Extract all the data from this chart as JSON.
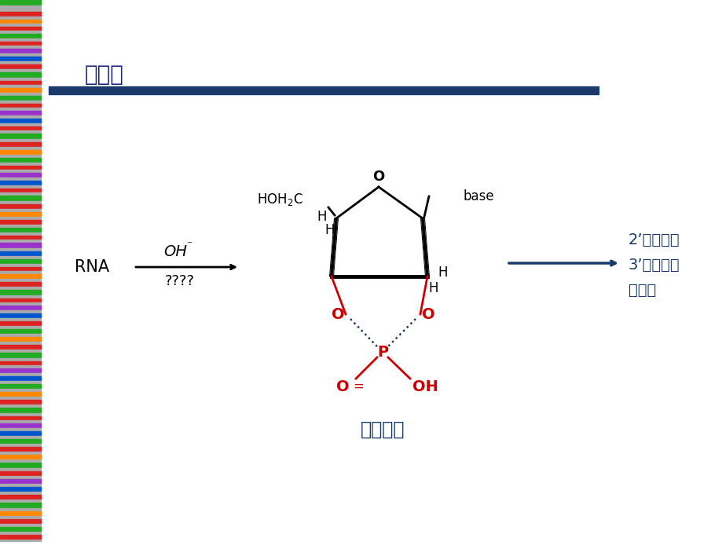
{
  "title": "碱水解",
  "title_color": "#1a237e",
  "title_underline_color": "#1a3a6b",
  "bg_color": "#ffffff",
  "rna_label": "RNA",
  "oh_charge": "⁻",
  "qmarks": "????",
  "arrow1_color": "#000000",
  "arrow2_color": "#1a3a6b",
  "product_lines": [
    "2’－核苷酸",
    "3’－核苷酸",
    "混合物"
  ],
  "product_color": "#1a3a6b",
  "ring_label": "环磷酸酯",
  "ring_label_color": "#1a3a6b",
  "black": "#000000",
  "red": "#cc0000",
  "dark_navy": "#1a3a6b",
  "dotted_color": "#1a3a6b",
  "bar_strips": [
    [
      0,
      6,
      "#22aa22"
    ],
    [
      7,
      3,
      "#aaaaaa"
    ],
    [
      11,
      3,
      "#aaaaaa"
    ],
    [
      15,
      5,
      "#dd2222"
    ],
    [
      21,
      3,
      "#aaaaaa"
    ],
    [
      25,
      4,
      "#ff8800"
    ],
    [
      30,
      3,
      "#aaaaaa"
    ],
    [
      34,
      4,
      "#dd2222"
    ],
    [
      39,
      3,
      "#aaaaaa"
    ],
    [
      43,
      5,
      "#22aa22"
    ],
    [
      49,
      3,
      "#aaaaaa"
    ],
    [
      53,
      4,
      "#dd2222"
    ],
    [
      58,
      3,
      "#aaaaaa"
    ],
    [
      62,
      5,
      "#9933cc"
    ],
    [
      68,
      3,
      "#aaaaaa"
    ],
    [
      72,
      5,
      "#0055cc"
    ],
    [
      78,
      3,
      "#aaaaaa"
    ],
    [
      82,
      5,
      "#dd2222"
    ],
    [
      88,
      3,
      "#aaaaaa"
    ],
    [
      92,
      6,
      "#22aa22"
    ],
    [
      99,
      3,
      "#aaaaaa"
    ],
    [
      103,
      4,
      "#dd2222"
    ],
    [
      108,
      3,
      "#aaaaaa"
    ],
    [
      112,
      5,
      "#ff8800"
    ],
    [
      118,
      3,
      "#aaaaaa"
    ],
    [
      122,
      5,
      "#22aa22"
    ],
    [
      128,
      3,
      "#aaaaaa"
    ],
    [
      132,
      4,
      "#dd2222"
    ],
    [
      137,
      3,
      "#aaaaaa"
    ],
    [
      141,
      5,
      "#9933cc"
    ],
    [
      147,
      3,
      "#aaaaaa"
    ],
    [
      151,
      5,
      "#0055cc"
    ],
    [
      157,
      3,
      "#aaaaaa"
    ],
    [
      161,
      4,
      "#dd2222"
    ],
    [
      166,
      3,
      "#aaaaaa"
    ],
    [
      170,
      6,
      "#22aa22"
    ],
    [
      177,
      3,
      "#aaaaaa"
    ],
    [
      181,
      5,
      "#dd2222"
    ],
    [
      187,
      3,
      "#aaaaaa"
    ],
    [
      191,
      5,
      "#ff8800"
    ],
    [
      197,
      3,
      "#aaaaaa"
    ],
    [
      201,
      5,
      "#22aa22"
    ],
    [
      207,
      3,
      "#aaaaaa"
    ],
    [
      211,
      4,
      "#dd2222"
    ],
    [
      216,
      3,
      "#aaaaaa"
    ],
    [
      220,
      5,
      "#9933cc"
    ],
    [
      226,
      3,
      "#aaaaaa"
    ],
    [
      230,
      5,
      "#0055cc"
    ],
    [
      236,
      3,
      "#aaaaaa"
    ],
    [
      240,
      4,
      "#dd2222"
    ],
    [
      245,
      3,
      "#aaaaaa"
    ],
    [
      249,
      6,
      "#22aa22"
    ],
    [
      256,
      3,
      "#aaaaaa"
    ],
    [
      260,
      5,
      "#dd2222"
    ],
    [
      266,
      3,
      "#aaaaaa"
    ],
    [
      270,
      5,
      "#ff8800"
    ],
    [
      276,
      3,
      "#aaaaaa"
    ],
    [
      280,
      5,
      "#dd2222"
    ],
    [
      286,
      3,
      "#aaaaaa"
    ],
    [
      290,
      5,
      "#22aa22"
    ],
    [
      296,
      3,
      "#aaaaaa"
    ],
    [
      300,
      4,
      "#dd2222"
    ],
    [
      305,
      3,
      "#aaaaaa"
    ],
    [
      309,
      6,
      "#9933cc"
    ],
    [
      316,
      3,
      "#aaaaaa"
    ],
    [
      320,
      5,
      "#0055cc"
    ],
    [
      326,
      3,
      "#aaaaaa"
    ],
    [
      330,
      5,
      "#22aa22"
    ],
    [
      336,
      3,
      "#aaaaaa"
    ],
    [
      340,
      4,
      "#dd2222"
    ],
    [
      345,
      3,
      "#aaaaaa"
    ],
    [
      349,
      5,
      "#ff8800"
    ],
    [
      355,
      3,
      "#aaaaaa"
    ],
    [
      359,
      5,
      "#dd2222"
    ],
    [
      365,
      3,
      "#aaaaaa"
    ],
    [
      369,
      6,
      "#22aa22"
    ],
    [
      376,
      3,
      "#aaaaaa"
    ],
    [
      380,
      4,
      "#dd2222"
    ],
    [
      385,
      3,
      "#aaaaaa"
    ],
    [
      389,
      5,
      "#9933cc"
    ],
    [
      395,
      3,
      "#aaaaaa"
    ],
    [
      399,
      5,
      "#0055cc"
    ],
    [
      405,
      3,
      "#aaaaaa"
    ],
    [
      409,
      5,
      "#dd2222"
    ],
    [
      415,
      3,
      "#aaaaaa"
    ],
    [
      419,
      5,
      "#22aa22"
    ],
    [
      425,
      3,
      "#aaaaaa"
    ],
    [
      429,
      5,
      "#ff8800"
    ],
    [
      435,
      3,
      "#aaaaaa"
    ],
    [
      439,
      5,
      "#dd2222"
    ],
    [
      445,
      3,
      "#aaaaaa"
    ],
    [
      449,
      6,
      "#22aa22"
    ],
    [
      456,
      3,
      "#aaaaaa"
    ],
    [
      460,
      4,
      "#dd2222"
    ],
    [
      465,
      3,
      "#aaaaaa"
    ],
    [
      469,
      5,
      "#9933cc"
    ],
    [
      475,
      3,
      "#aaaaaa"
    ],
    [
      479,
      5,
      "#0055cc"
    ],
    [
      485,
      3,
      "#aaaaaa"
    ],
    [
      489,
      5,
      "#22aa22"
    ],
    [
      495,
      3,
      "#aaaaaa"
    ],
    [
      499,
      5,
      "#ff8800"
    ],
    [
      505,
      3,
      "#aaaaaa"
    ],
    [
      509,
      5,
      "#dd2222"
    ],
    [
      515,
      3,
      "#aaaaaa"
    ],
    [
      519,
      6,
      "#22aa22"
    ],
    [
      526,
      3,
      "#aaaaaa"
    ],
    [
      530,
      4,
      "#dd2222"
    ],
    [
      535,
      3,
      "#aaaaaa"
    ],
    [
      539,
      5,
      "#9933cc"
    ],
    [
      545,
      3,
      "#aaaaaa"
    ],
    [
      549,
      5,
      "#0055cc"
    ],
    [
      555,
      3,
      "#aaaaaa"
    ],
    [
      559,
      5,
      "#22aa22"
    ],
    [
      565,
      3,
      "#aaaaaa"
    ],
    [
      569,
      5,
      "#dd2222"
    ],
    [
      575,
      3,
      "#aaaaaa"
    ],
    [
      579,
      5,
      "#ff8800"
    ],
    [
      585,
      3,
      "#aaaaaa"
    ],
    [
      589,
      6,
      "#22aa22"
    ],
    [
      596,
      3,
      "#aaaaaa"
    ],
    [
      600,
      5,
      "#dd2222"
    ],
    [
      606,
      3,
      "#aaaaaa"
    ],
    [
      610,
      5,
      "#9933cc"
    ],
    [
      616,
      3,
      "#aaaaaa"
    ],
    [
      620,
      5,
      "#0055cc"
    ],
    [
      626,
      3,
      "#aaaaaa"
    ],
    [
      630,
      5,
      "#dd2222"
    ],
    [
      636,
      3,
      "#aaaaaa"
    ],
    [
      640,
      6,
      "#22aa22"
    ],
    [
      647,
      3,
      "#aaaaaa"
    ],
    [
      651,
      5,
      "#ff8800"
    ],
    [
      657,
      3,
      "#aaaaaa"
    ],
    [
      661,
      5,
      "#dd2222"
    ],
    [
      667,
      3,
      "#aaaaaa"
    ],
    [
      671,
      5,
      "#22aa22"
    ],
    [
      677,
      3,
      "#aaaaaa"
    ],
    [
      681,
      5,
      "#dd2222"
    ],
    [
      687,
      3,
      "#aaaaaa"
    ]
  ]
}
